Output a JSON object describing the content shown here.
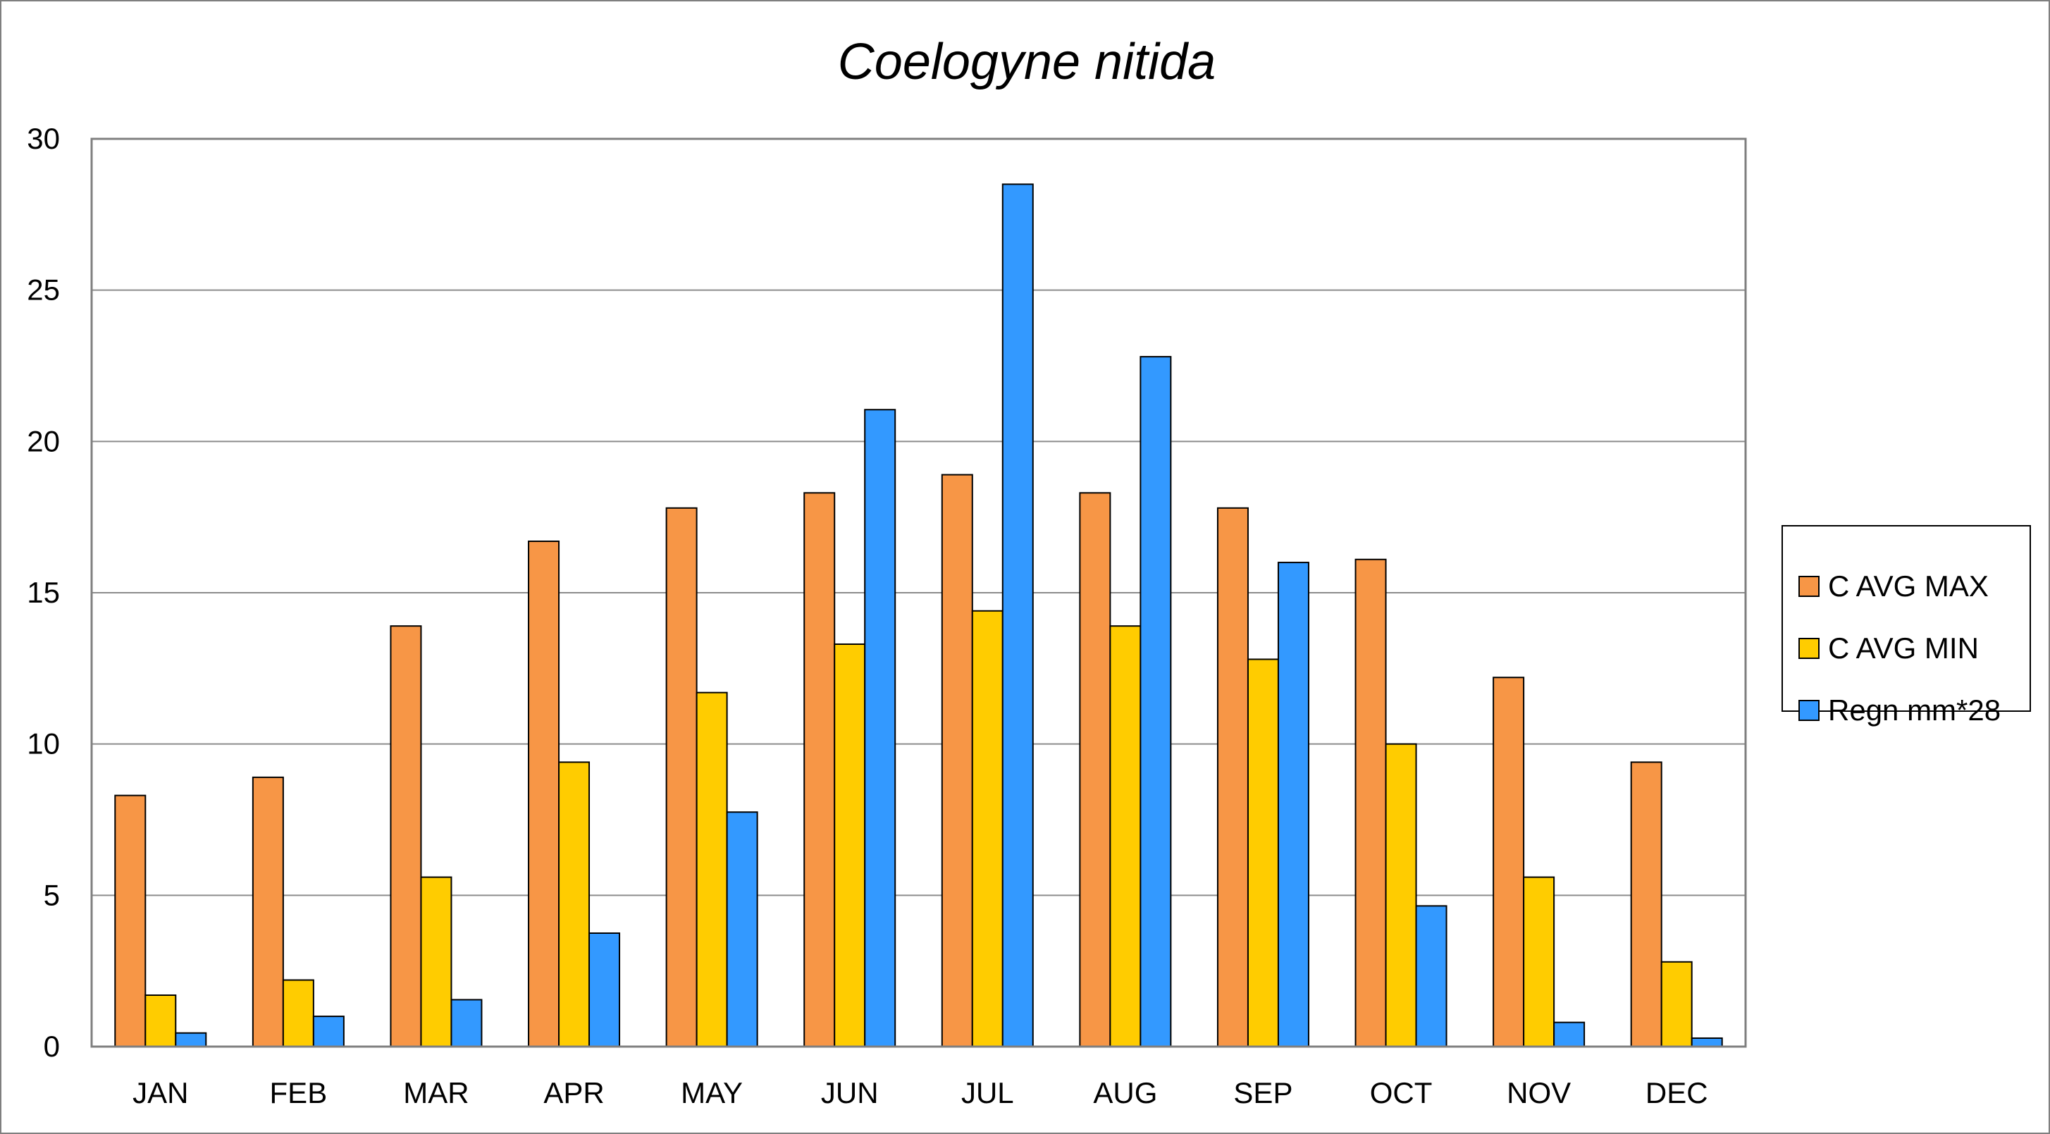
{
  "chart_data": {
    "type": "bar",
    "title": "Coelogyne nitida",
    "xlabel": "",
    "ylabel": "",
    "categories": [
      "JAN",
      "FEB",
      "MAR",
      "APR",
      "MAY",
      "JUN",
      "JUL",
      "AUG",
      "SEP",
      "OCT",
      "NOV",
      "DEC"
    ],
    "series": [
      {
        "name": "C AVG MAX",
        "color": "#f79646",
        "values": [
          8.3,
          8.9,
          13.9,
          16.7,
          17.8,
          18.3,
          18.9,
          18.3,
          17.8,
          16.1,
          12.2,
          9.4
        ]
      },
      {
        "name": "C AVG MIN",
        "color": "#ffcc00",
        "values": [
          1.7,
          2.2,
          5.6,
          9.4,
          11.7,
          13.3,
          14.4,
          13.9,
          12.8,
          10.0,
          5.6,
          2.8
        ]
      },
      {
        "name": "Regn mm*28",
        "color": "#3399ff",
        "values": [
          0.45,
          1.0,
          1.55,
          3.75,
          7.75,
          21.05,
          28.5,
          22.8,
          16.0,
          4.65,
          0.8,
          0.28
        ]
      }
    ],
    "ylim": [
      0,
      30
    ],
    "yticks": [
      0,
      5,
      10,
      15,
      20,
      25,
      30
    ],
    "grid": true,
    "legend_position": "right"
  }
}
